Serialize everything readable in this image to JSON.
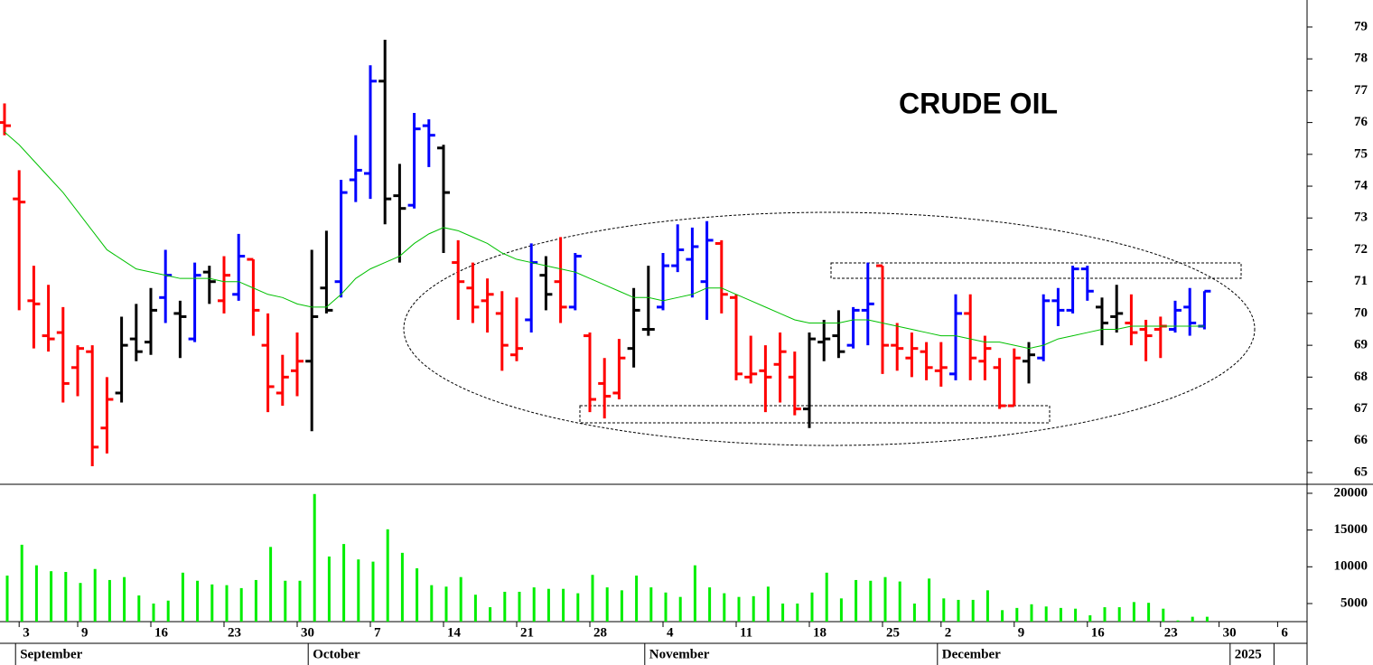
{
  "chart_data": {
    "type": "ohlc",
    "title": "CRUDE OIL",
    "categories": [
      null,
      "3",
      null,
      null,
      null,
      "9",
      null,
      null,
      null,
      null,
      "16",
      null,
      null,
      null,
      null,
      "23",
      null,
      null,
      null,
      null,
      "30",
      null,
      null,
      null,
      null,
      "7",
      null,
      null,
      null,
      null,
      "14",
      null,
      null,
      null,
      null,
      "21",
      null,
      null,
      null,
      null,
      "28",
      null,
      null,
      null,
      null,
      "4",
      null,
      null,
      null,
      null,
      "11",
      null,
      null,
      null,
      null,
      "18",
      null,
      null,
      null,
      null,
      "25",
      null,
      null,
      null,
      "2",
      null,
      null,
      null,
      null,
      "9",
      null,
      null,
      null,
      null,
      "16",
      null,
      null,
      null,
      null,
      "23",
      null,
      null,
      null,
      "30",
      null,
      null,
      null,
      "6"
    ],
    "months": [
      null,
      "September",
      null,
      null,
      null,
      null,
      null,
      null,
      null,
      null,
      null,
      null,
      null,
      null,
      null,
      null,
      null,
      null,
      null,
      null,
      null,
      "October",
      null,
      null,
      null,
      null,
      null,
      null,
      null,
      null,
      null,
      null,
      null,
      null,
      null,
      null,
      null,
      null,
      null,
      null,
      null,
      null,
      null,
      null,
      "November",
      null,
      null,
      null,
      null,
      null,
      null,
      null,
      null,
      null,
      null,
      null,
      null,
      null,
      null,
      null,
      null,
      null,
      null,
      null,
      "December",
      null,
      null,
      null,
      null,
      null,
      null,
      null,
      null,
      null,
      null,
      null,
      null,
      null,
      null,
      null,
      null,
      null,
      null,
      null,
      "2025",
      null,
      null
    ],
    "open": [
      76.0,
      73.6,
      70.4,
      69.3,
      69.4,
      68.3,
      68.8,
      66.4,
      67.5,
      69.2,
      69.1,
      70.5,
      70.0,
      69.2,
      71.3,
      70.4,
      70.6,
      71.7,
      69.0,
      67.5,
      68.2,
      68.5,
      70.8,
      71.0,
      74.2,
      74.4,
      77.3,
      73.7,
      73.4,
      75.9,
      75.2,
      71.6,
      70.8,
      70.4,
      70.0,
      68.7,
      69.8,
      71.2,
      71.0,
      70.2,
      69.3,
      67.8,
      67.5,
      68.9,
      69.5,
      70.2,
      71.5,
      71.7,
      71.0,
      72.2,
      70.5,
      68.0,
      68.2,
      68.4,
      68.0,
      67.0,
      69.1,
      69.3,
      69.0,
      70.1,
      71.5,
      69.0,
      68.6,
      68.8,
      68.2,
      68.1,
      70.0,
      68.5,
      68.3,
      67.1,
      68.5,
      68.6,
      70.4,
      70.1,
      71.4,
      70.2,
      69.9,
      69.7,
      69.5,
      69.5,
      69.5,
      70.2,
      69.6,
      null,
      null,
      null,
      null,
      null
    ],
    "high": [
      76.6,
      74.5,
      71.5,
      70.9,
      70.2,
      69.0,
      69.0,
      68.0,
      69.9,
      70.3,
      70.8,
      72.0,
      70.4,
      71.6,
      71.5,
      71.8,
      72.5,
      71.7,
      70.0,
      68.7,
      69.4,
      72.0,
      72.6,
      74.2,
      75.6,
      77.8,
      78.6,
      74.7,
      76.3,
      76.1,
      75.3,
      72.3,
      71.6,
      71.1,
      70.7,
      70.5,
      72.2,
      71.8,
      72.4,
      71.9,
      69.4,
      68.6,
      69.2,
      70.8,
      71.5,
      71.9,
      72.8,
      72.7,
      72.9,
      72.3,
      70.6,
      69.3,
      69.0,
      69.4,
      68.8,
      69.4,
      69.8,
      70.1,
      70.2,
      71.6,
      71.5,
      69.7,
      69.4,
      69.1,
      69.1,
      70.6,
      70.6,
      69.3,
      68.6,
      68.9,
      69.1,
      70.6,
      70.8,
      71.5,
      71.5,
      70.5,
      70.9,
      70.6,
      69.8,
      69.9,
      70.4,
      70.8,
      70.7,
      null,
      null,
      null,
      null,
      null
    ],
    "low": [
      75.6,
      70.1,
      68.9,
      68.8,
      67.2,
      67.4,
      65.2,
      65.6,
      67.2,
      68.5,
      68.7,
      69.7,
      68.6,
      69.1,
      70.3,
      70.0,
      70.4,
      69.3,
      66.9,
      67.1,
      67.4,
      66.3,
      70.0,
      70.5,
      73.5,
      73.6,
      72.8,
      71.6,
      73.3,
      74.6,
      71.9,
      69.8,
      69.7,
      69.4,
      68.2,
      68.5,
      69.4,
      70.1,
      69.7,
      70.1,
      66.9,
      66.7,
      67.3,
      68.3,
      69.3,
      70.1,
      71.3,
      70.5,
      69.8,
      70.0,
      67.9,
      67.8,
      66.9,
      67.2,
      66.8,
      66.4,
      68.5,
      68.6,
      68.9,
      69.0,
      68.1,
      68.2,
      68.0,
      67.9,
      67.7,
      67.9,
      67.9,
      67.9,
      67.0,
      67.1,
      67.8,
      68.5,
      69.6,
      70.0,
      70.4,
      69.0,
      69.4,
      69.0,
      68.5,
      68.6,
      69.4,
      69.3,
      69.5,
      null,
      null,
      null,
      null,
      null
    ],
    "close": [
      75.9,
      73.5,
      70.3,
      69.2,
      67.8,
      68.9,
      65.8,
      67.3,
      69.0,
      68.8,
      70.1,
      71.2,
      69.9,
      71.2,
      71.0,
      71.2,
      71.8,
      70.1,
      67.7,
      68.0,
      68.5,
      69.9,
      70.1,
      73.8,
      74.5,
      77.3,
      73.6,
      73.3,
      75.8,
      75.6,
      73.8,
      71.0,
      70.2,
      70.6,
      69.0,
      68.9,
      71.6,
      70.6,
      70.2,
      71.8,
      67.3,
      67.4,
      68.6,
      70.1,
      69.5,
      71.5,
      72.0,
      72.1,
      72.3,
      70.6,
      68.1,
      68.1,
      68.0,
      68.8,
      67.0,
      69.2,
      69.2,
      68.8,
      70.1,
      70.3,
      69.0,
      68.9,
      68.9,
      68.3,
      68.3,
      70.0,
      68.6,
      68.9,
      67.1,
      68.6,
      68.7,
      70.4,
      70.1,
      71.4,
      70.7,
      69.7,
      70.0,
      69.4,
      69.3,
      69.6,
      70.1,
      69.7,
      70.7,
      null,
      null,
      null,
      null,
      null
    ],
    "bar_colors": [
      "#ff0000",
      "#ff0000",
      "#ff0000",
      "#ff0000",
      "#ff0000",
      "#ff0000",
      "#ff0000",
      "#ff0000",
      "#000000",
      "#000000",
      "#000000",
      "#0000ff",
      "#000000",
      "#0000ff",
      "#000000",
      "#ff0000",
      "#0000ff",
      "#ff0000",
      "#ff0000",
      "#ff0000",
      "#ff0000",
      "#000000",
      "#000000",
      "#0000ff",
      "#0000ff",
      "#0000ff",
      "#000000",
      "#000000",
      "#0000ff",
      "#0000ff",
      "#000000",
      "#ff0000",
      "#ff0000",
      "#ff0000",
      "#ff0000",
      "#ff0000",
      "#0000ff",
      "#000000",
      "#ff0000",
      "#0000ff",
      "#ff0000",
      "#ff0000",
      "#ff0000",
      "#000000",
      "#000000",
      "#0000ff",
      "#0000ff",
      "#0000ff",
      "#0000ff",
      "#ff0000",
      "#ff0000",
      "#ff0000",
      "#ff0000",
      "#ff0000",
      "#ff0000",
      "#000000",
      "#000000",
      "#000000",
      "#0000ff",
      "#0000ff",
      "#ff0000",
      "#ff0000",
      "#ff0000",
      "#ff0000",
      "#ff0000",
      "#0000ff",
      "#ff0000",
      "#ff0000",
      "#ff0000",
      "#ff0000",
      "#000000",
      "#0000ff",
      "#0000ff",
      "#0000ff",
      "#0000ff",
      "#000000",
      "#000000",
      "#ff0000",
      "#ff0000",
      "#ff0000",
      "#0000ff",
      "#0000ff",
      "#0000ff",
      null,
      null,
      null,
      null,
      null
    ],
    "ylim": [
      64.66,
      79.85
    ],
    "yticks": [
      65,
      66,
      67,
      68,
      69,
      70,
      71,
      72,
      73,
      74,
      75,
      76,
      77,
      78,
      79
    ],
    "ma": {
      "color": "#00c000",
      "values": [
        75.7,
        75.3,
        74.8,
        74.3,
        73.8,
        73.2,
        72.6,
        72.0,
        71.7,
        71.4,
        71.3,
        71.2,
        71.1,
        71.1,
        71.1,
        71.0,
        71.0,
        70.8,
        70.6,
        70.5,
        70.3,
        70.2,
        70.2,
        70.6,
        71.1,
        71.4,
        71.6,
        71.8,
        72.2,
        72.5,
        72.7,
        72.6,
        72.4,
        72.2,
        71.9,
        71.7,
        71.6,
        71.5,
        71.4,
        71.3,
        71.1,
        70.9,
        70.7,
        70.5,
        70.5,
        70.4,
        70.5,
        70.6,
        70.8,
        70.8,
        70.6,
        70.4,
        70.2,
        70.0,
        69.8,
        69.7,
        69.7,
        69.7,
        69.8,
        69.8,
        69.7,
        69.6,
        69.5,
        69.4,
        69.3,
        69.3,
        69.2,
        69.1,
        69.1,
        69.0,
        68.9,
        69.0,
        69.2,
        69.3,
        69.4,
        69.5,
        69.5,
        69.6,
        69.6,
        69.6,
        69.6,
        69.6,
        69.6,
        null,
        null,
        null,
        null,
        null
      ]
    },
    "volume": {
      "color": "#00ee00",
      "values": [
        8800,
        13000,
        10200,
        9400,
        9300,
        7800,
        9700,
        8200,
        8600,
        6100,
        5000,
        5400,
        9200,
        8100,
        7600,
        7500,
        7100,
        8200,
        12700,
        8100,
        8100,
        19900,
        11400,
        13100,
        11000,
        10700,
        15100,
        11900,
        9800,
        7500,
        7300,
        8600,
        6200,
        4500,
        6600,
        6600,
        7200,
        7000,
        7000,
        6400,
        8900,
        7200,
        6800,
        8800,
        7200,
        6500,
        5900,
        10200,
        7200,
        6400,
        5900,
        6000,
        7300,
        5000,
        5000,
        6500,
        9200,
        5700,
        8200,
        8100,
        8600,
        8000,
        5000,
        8400,
        5700,
        5500,
        5500,
        6800,
        4100,
        4400,
        4900,
        4600,
        4400,
        4300,
        3400,
        4500,
        4500,
        5200,
        5100,
        4300,
        2700,
        3200,
        3200,
        null,
        null,
        null,
        null,
        null
      ],
      "ylim": [
        2540,
        21100
      ],
      "yticks": [
        5000,
        10000,
        15000,
        20000
      ]
    }
  }
}
